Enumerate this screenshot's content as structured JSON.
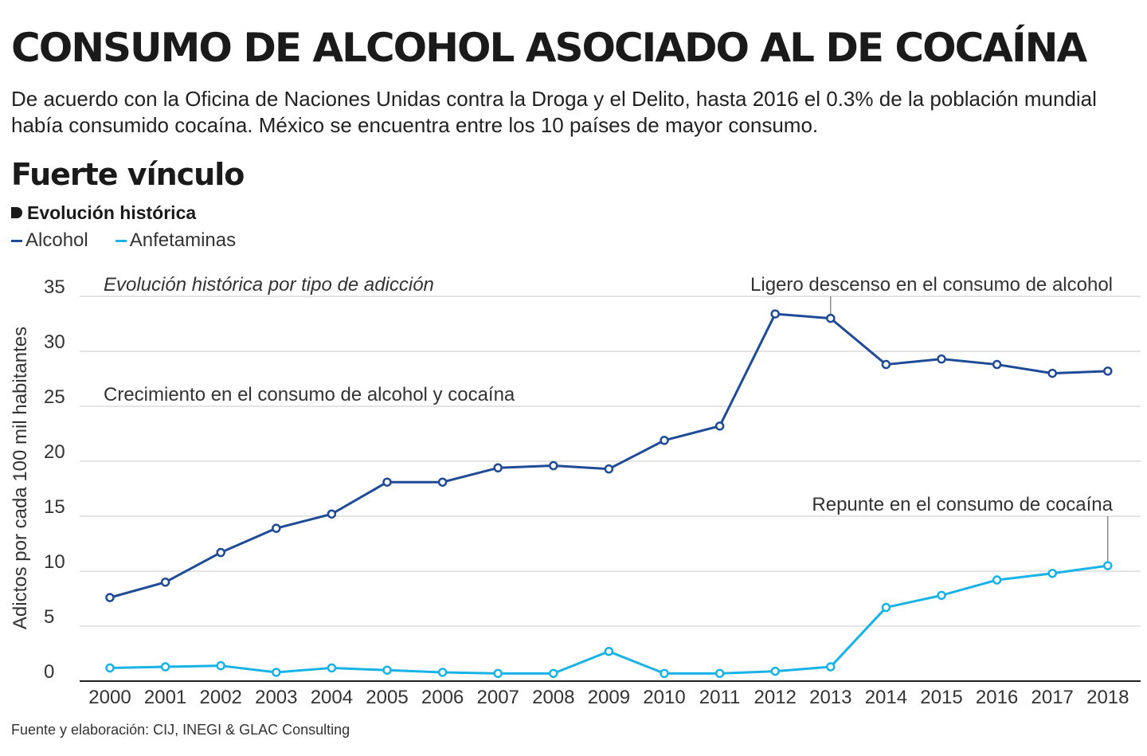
{
  "header": {
    "title": "CONSUMO DE ALCOHOL ASOCIADO AL DE COCAÍNA",
    "subtitle": "De acuerdo con la Oficina de Naciones Unidas contra la Droga y el Delito, hasta 2016 el 0.3% de la población mundial había consumido cocaína. México se encuentra entre los 10 países de mayor consumo.",
    "section_title": "Fuerte vínculo",
    "section_label": "Evolución histórica"
  },
  "legend": [
    {
      "label": "Alcohol",
      "color": "#1f4a96"
    },
    {
      "label": "Anfetaminas",
      "color": "#17b3e6"
    }
  ],
  "chart_data": {
    "type": "line",
    "inner_title": "Evolución histórica  por tipo de adicción",
    "ylabel": "Adictos por cada 100 mil habitantes",
    "xlabel": "",
    "ylim": [
      0,
      35
    ],
    "yticks": [
      0,
      5,
      10,
      15,
      20,
      25,
      30,
      35
    ],
    "grid": true,
    "x": [
      "2000",
      "2001",
      "2002",
      "2003",
      "2004",
      "2005",
      "2006",
      "2007",
      "2008",
      "2009",
      "2010",
      "2011",
      "2012",
      "2013",
      "2014",
      "2015",
      "2016",
      "2017",
      "2018"
    ],
    "series": [
      {
        "name": "Alcohol",
        "color": "#1f4a96",
        "values": [
          7.6,
          9.0,
          11.7,
          13.9,
          15.2,
          18.1,
          18.1,
          19.4,
          19.6,
          19.3,
          21.9,
          23.2,
          33.4,
          33.0,
          28.8,
          29.3,
          28.8,
          28.0,
          28.2
        ]
      },
      {
        "name": "Anfetaminas",
        "color": "#17b3e6",
        "values": [
          1.2,
          1.3,
          1.4,
          0.8,
          1.2,
          1.0,
          0.8,
          0.7,
          0.7,
          2.7,
          0.7,
          0.7,
          0.9,
          1.3,
          6.7,
          7.8,
          9.2,
          9.8,
          10.5
        ]
      }
    ],
    "annotations": [
      {
        "text": "Crecimiento en el consumo de alcohol y cocaína"
      },
      {
        "text": "Ligero descenso en el consumo de alcohol",
        "series": 0,
        "x": "2013",
        "anchor": "end"
      },
      {
        "text": "Repunte en el consumo de cocaína",
        "series": 1,
        "x": "2018",
        "anchor": "end"
      }
    ]
  },
  "footer": {
    "source": "Fuente y elaboración: CIJ, INEGI & GLAC Consulting"
  }
}
